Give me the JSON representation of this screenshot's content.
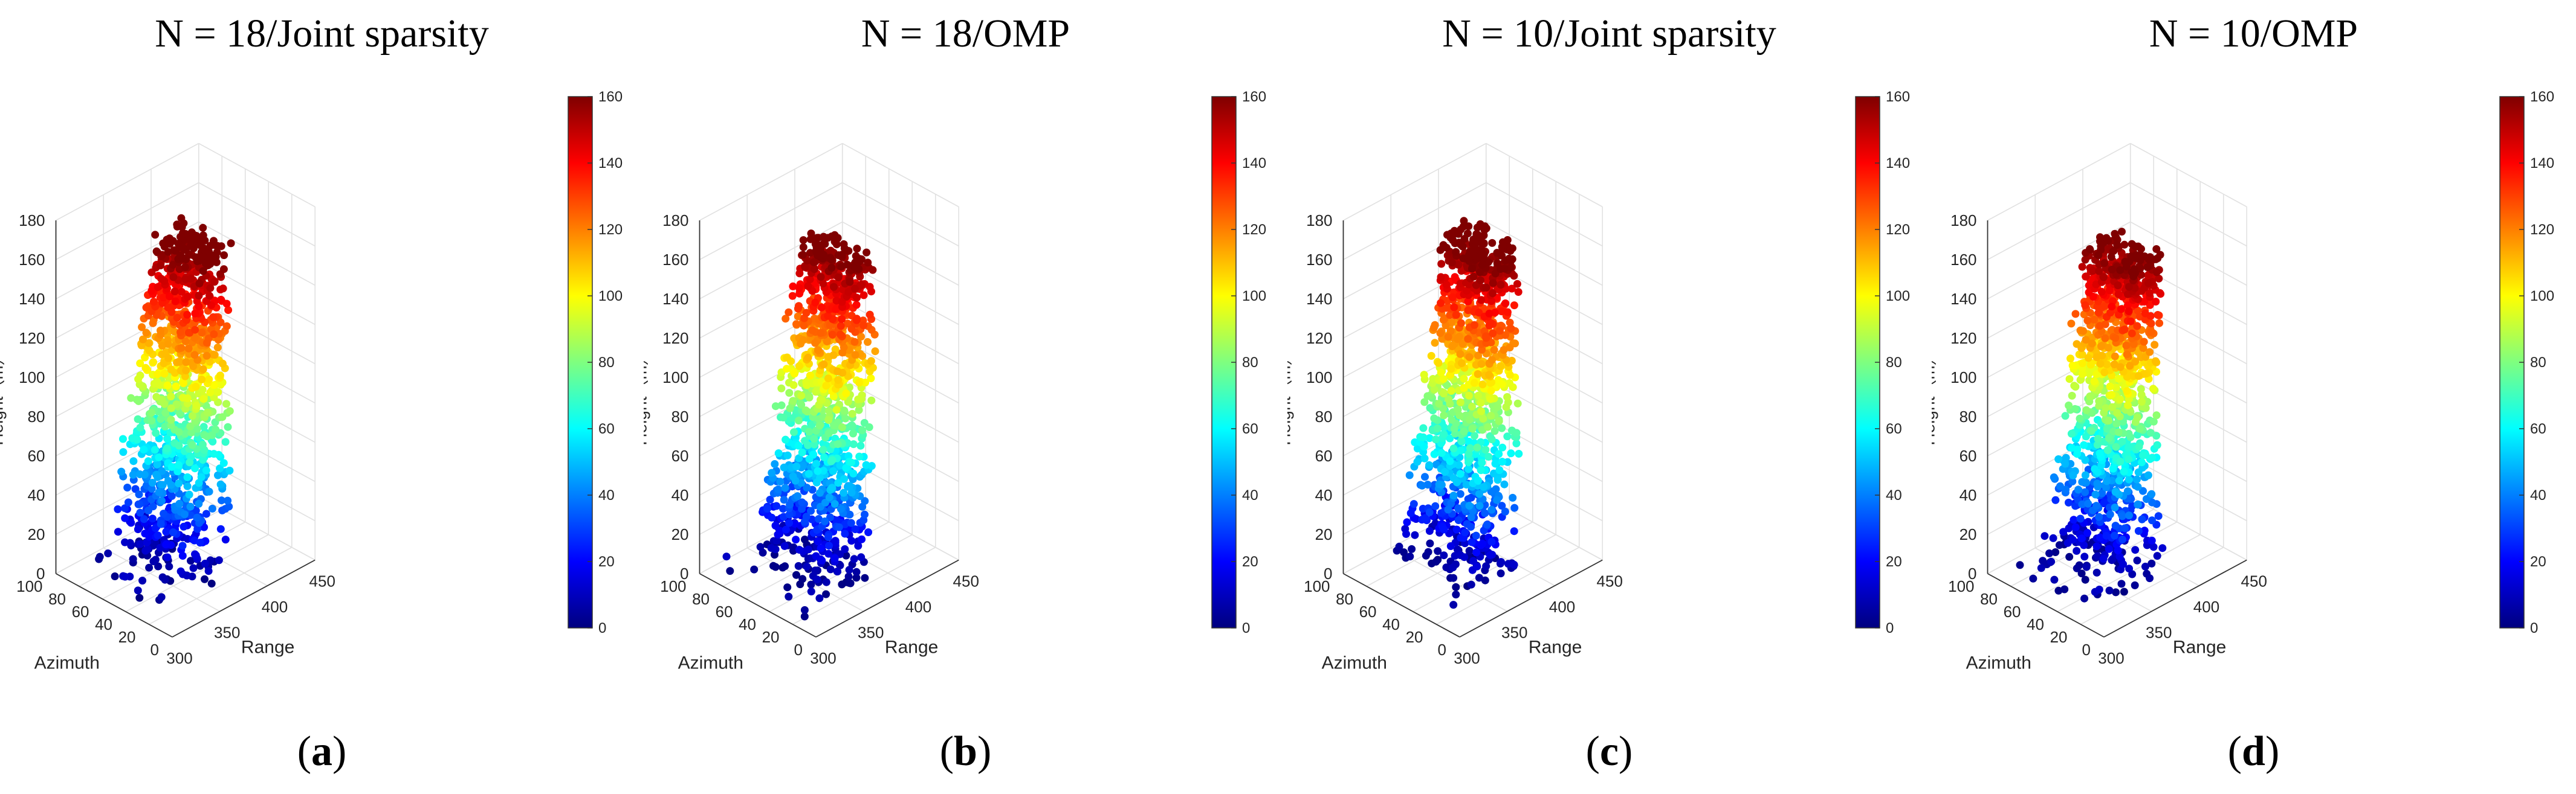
{
  "colorscale": [
    "#00007f",
    "#0000ff",
    "#007fff",
    "#00ffff",
    "#7fff7f",
    "#ffff00",
    "#ff7f00",
    "#ff0000",
    "#7f0000"
  ],
  "chart_data": [
    {
      "type": "scatter",
      "projection": "3d",
      "title": "N = 18/Joint sparsity",
      "label_letter": "a",
      "xlabel": "Range",
      "ylabel": "Azimuth",
      "zlabel": "Height（m）",
      "xticks": [
        "300",
        "350",
        "400",
        "450"
      ],
      "yticks": [
        "0",
        "20",
        "40",
        "60",
        "80",
        "100"
      ],
      "zticks": [
        "0",
        "20",
        "40",
        "60",
        "80",
        "100",
        "120",
        "140",
        "160",
        "180"
      ],
      "xlim": [
        300,
        450
      ],
      "ylim": [
        0,
        100
      ],
      "zlim": [
        0,
        180
      ],
      "colorbar": {
        "ticks": [
          "0",
          "20",
          "40",
          "60",
          "80",
          "100",
          "120",
          "140",
          "160"
        ],
        "range": [
          0,
          160
        ]
      },
      "grid": true,
      "cluster": {
        "range": [
          342,
          392
        ],
        "azimuth": [
          24,
          92
        ],
        "height": [
          0,
          170
        ]
      },
      "scatter_outliers": 24
    },
    {
      "type": "scatter",
      "projection": "3d",
      "title": "N = 18/OMP",
      "label_letter": "b",
      "xlabel": "Range",
      "ylabel": "Azimuth",
      "zlabel": "Height（m）",
      "xticks": [
        "300",
        "350",
        "400",
        "450"
      ],
      "yticks": [
        "0",
        "20",
        "40",
        "60",
        "80",
        "100"
      ],
      "zticks": [
        "0",
        "20",
        "40",
        "60",
        "80",
        "100",
        "120",
        "140",
        "160",
        "180"
      ],
      "xlim": [
        300,
        450
      ],
      "ylim": [
        0,
        100
      ],
      "zlim": [
        0,
        180
      ],
      "colorbar": {
        "ticks": [
          "0",
          "20",
          "40",
          "60",
          "80",
          "100",
          "120",
          "140",
          "160"
        ],
        "range": [
          0,
          160
        ]
      },
      "grid": true,
      "cluster": {
        "range": [
          342,
          392
        ],
        "azimuth": [
          24,
          92
        ],
        "height": [
          0,
          165
        ]
      },
      "scatter_outliers": 30
    },
    {
      "type": "scatter",
      "projection": "3d",
      "title": "N = 10/Joint sparsity",
      "label_letter": "c",
      "xlabel": "Range",
      "ylabel": "Azimuth",
      "zlabel": "Height（m）",
      "xticks": [
        "300",
        "350",
        "400",
        "450"
      ],
      "yticks": [
        "0",
        "20",
        "40",
        "60",
        "80",
        "100"
      ],
      "zticks": [
        "0",
        "20",
        "40",
        "60",
        "80",
        "100",
        "120",
        "140",
        "160",
        "180"
      ],
      "xlim": [
        300,
        450
      ],
      "ylim": [
        0,
        100
      ],
      "zlim": [
        0,
        180
      ],
      "colorbar": {
        "ticks": [
          "0",
          "20",
          "40",
          "60",
          "80",
          "100",
          "120",
          "140",
          "160"
        ],
        "range": [
          0,
          160
        ]
      },
      "grid": true,
      "cluster": {
        "range": [
          342,
          392
        ],
        "azimuth": [
          24,
          92
        ],
        "height": [
          0,
          170
        ]
      },
      "scatter_outliers": 12
    },
    {
      "type": "scatter",
      "projection": "3d",
      "title": "N = 10/OMP",
      "label_letter": "d",
      "xlabel": "Range",
      "ylabel": "Azimuth",
      "zlabel": "Height（m）",
      "xticks": [
        "300",
        "350",
        "400",
        "450"
      ],
      "yticks": [
        "0",
        "20",
        "40",
        "60",
        "80",
        "100"
      ],
      "zticks": [
        "0",
        "20",
        "40",
        "60",
        "80",
        "100",
        "120",
        "140",
        "160",
        "180"
      ],
      "xlim": [
        300,
        450
      ],
      "ylim": [
        0,
        100
      ],
      "zlim": [
        0,
        180
      ],
      "colorbar": {
        "ticks": [
          "0",
          "20",
          "40",
          "60",
          "80",
          "100",
          "120",
          "140",
          "160"
        ],
        "range": [
          0,
          160
        ]
      },
      "grid": true,
      "cluster": {
        "range": [
          342,
          392
        ],
        "azimuth": [
          24,
          92
        ],
        "height": [
          0,
          165
        ]
      },
      "scatter_outliers": 28
    }
  ]
}
